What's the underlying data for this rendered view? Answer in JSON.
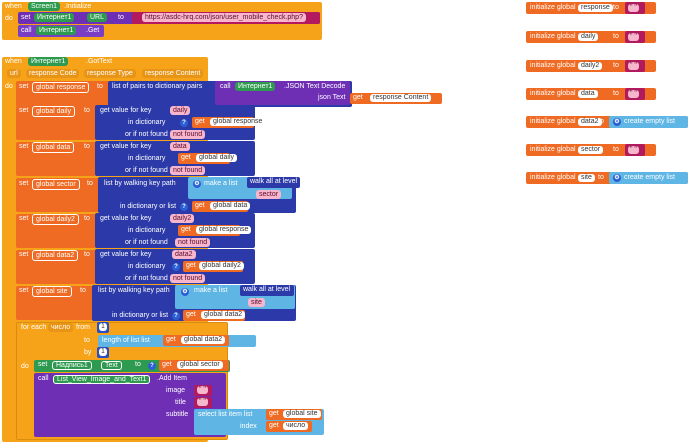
{
  "init": {
    "when": "when",
    "component": "Screen1",
    "event": ".Initialize",
    "do": "do",
    "set": "set",
    "comp_internet": "Интернет1",
    "prop_url": "URL",
    "to": "to",
    "url_value": "https://asdc-hrq.com/json/user_mobile_check.php?",
    "call": "call",
    "method_get": ".Get"
  },
  "gottext": {
    "when": "when",
    "component": "Интернет1",
    "event": ".GotText",
    "params": [
      "url",
      "response Code",
      "response Type",
      "response Content"
    ],
    "do": "do"
  },
  "rows": {
    "r1_set": "set",
    "r1_var": "global response",
    "r1_to": "to",
    "r1_func": "list of pairs to dictionary  pairs",
    "r1_call": "call",
    "r1_comp": "Интернет1",
    "r1_method": ".JSON Text Decode",
    "r1_param": "json Text",
    "r1_get": "get",
    "r1_getvar": "response Content",
    "r2_set": "set",
    "r2_var": "global daily",
    "r2_to": "to",
    "r2_func": "get value for key",
    "r2_key": "daily",
    "r2_in": "in dictionary",
    "r2_get": "get",
    "r2_getvar": "global response",
    "r2_nf": "or if not found",
    "r2_nfval": "not found",
    "r3_set": "set",
    "r3_var": "global data",
    "r3_to": "to",
    "r3_func": "get value for key",
    "r3_key": "data",
    "r3_in": "in dictionary",
    "r3_get": "get",
    "r3_getvar": "global daily",
    "r3_nf": "or if not found",
    "r3_nfval": "not found",
    "r4_set": "set",
    "r4_var": "global sector",
    "r4_to": "to",
    "r4_func": "list by walking key path",
    "r4_make": "make a list",
    "r4_walk": "walk all at level",
    "r4_sector": "sector",
    "r4_in": "in dictionary or list",
    "r4_get": "get",
    "r4_getvar": "global data",
    "r5_set": "set",
    "r5_var": "global daily2",
    "r5_to": "to",
    "r5_func": "get value for key",
    "r5_key": "daily2",
    "r5_in": "in dictionary",
    "r5_get": "get",
    "r5_getvar": "global response",
    "r5_nf": "or if not found",
    "r5_nfval": "not found",
    "r6_set": "set",
    "r6_var": "global data2",
    "r6_to": "to",
    "r6_func": "get value for key",
    "r6_key": "data2",
    "r6_in": "in dictionary",
    "r6_get": "get",
    "r6_getvar": "global daily2",
    "r6_nf": "or if not found",
    "r6_nfval": "not found",
    "r7_set": "set",
    "r7_var": "global site",
    "r7_to": "to",
    "r7_func": "list by walking key path",
    "r7_make": "make a list",
    "r7_walk": "walk all at level",
    "r7_site": "site",
    "r7_in": "in dictionary or list",
    "r7_get": "get",
    "r7_getvar": "global data2"
  },
  "loop": {
    "for_each": "for each",
    "var": "число",
    "from": "from",
    "from_val": "1",
    "to": "to",
    "length": "length of list  list",
    "get": "get",
    "getvar": "global data2",
    "by": "by",
    "by_val": "1",
    "do": "do",
    "set": "set",
    "comp": "Надпись1",
    "prop": "Text",
    "set_to": "to",
    "set_get": "get",
    "set_getvar": "global sector",
    "call": "call",
    "call_comp": "List_View_Image_and_Text1",
    "call_method": ".Add Item",
    "image": "image",
    "title": "title",
    "subtitle": "subtitle",
    "index": "index",
    "select": "select list item  list",
    "sel_get": "get",
    "sel_getvar": "global site",
    "idx_get": "get",
    "idx_getvar": "число"
  },
  "globals": [
    {
      "label": "initialize global",
      "name": "response",
      "to": "to",
      "value": "\" \"",
      "kind": "text"
    },
    {
      "label": "initialize global",
      "name": "daily",
      "to": "to",
      "value": "\" \"",
      "kind": "text"
    },
    {
      "label": "initialize global",
      "name": "daily2",
      "to": "to",
      "value": "\" \"",
      "kind": "text"
    },
    {
      "label": "initialize global",
      "name": "data",
      "to": "to",
      "value": "\" \"",
      "kind": "text"
    },
    {
      "label": "initialize global",
      "name": "data2",
      "to": "to",
      "value": "create empty list",
      "kind": "list"
    },
    {
      "label": "initialize global",
      "name": "sector",
      "to": "to",
      "value": "\" \"",
      "kind": "text"
    },
    {
      "label": "initialize global",
      "name": "site",
      "to": "to",
      "value": "create empty list",
      "kind": "list"
    }
  ],
  "colors": {
    "event": "#f6a31a",
    "variable": "#ef6a22",
    "dictionary": "#2b3aa8",
    "list": "#5fb6e5",
    "component": "#6e2fb5",
    "text": "#b3195f",
    "green": "#2e9a4f"
  }
}
